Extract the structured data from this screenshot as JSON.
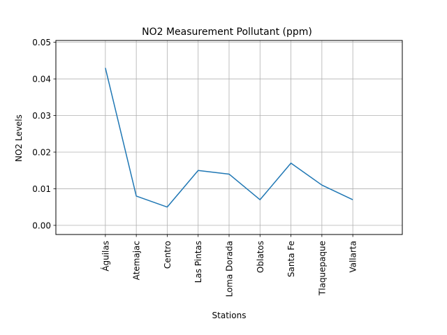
{
  "chart_data": {
    "type": "line",
    "title": "NO2 Measurement Pollutant (ppm)",
    "xlabel": "Stations",
    "ylabel": "NO2 Levels",
    "categories": [
      "Águilas",
      "Atemajac",
      "Centro",
      "Las Pintas",
      "Loma Dorada",
      "Oblatos",
      "Santa Fe",
      "Tlaquepaque",
      "Vallarta"
    ],
    "series": [
      {
        "values": [
          0.043,
          0.008,
          0.005,
          0.015,
          0.014,
          0.007,
          0.017,
          0.011,
          0.007
        ]
      }
    ],
    "ylim": [
      -0.0025,
      0.0505
    ],
    "yticks": [
      0.0,
      0.01,
      0.02,
      0.03,
      0.04,
      0.05
    ],
    "ytick_labels": [
      "0.00",
      "0.01",
      "0.02",
      "0.03",
      "0.04",
      "0.05"
    ],
    "grid": true,
    "line_color": "#1f77b4"
  }
}
